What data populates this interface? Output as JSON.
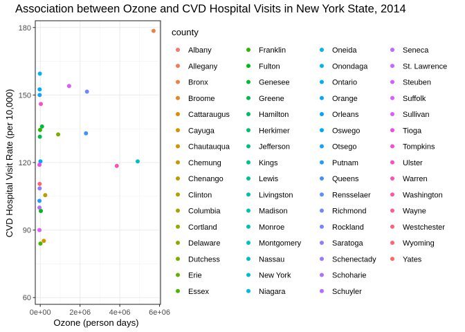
{
  "chart_data": {
    "type": "scatter",
    "title": "Association between Ozone and CVD Hospital Visits in New York State, 2014",
    "xlabel": "Ozone (person days)",
    "ylabel": "CVD Hospital Visit Rate (per 10,000)",
    "xlim": [
      -250000,
      6050000
    ],
    "ylim": [
      57,
      183
    ],
    "x_ticks": [
      0,
      2000000,
      4000000,
      6000000
    ],
    "x_tick_labels": [
      "0e+00",
      "2e+06",
      "4e+06",
      "6e+06"
    ],
    "y_ticks": [
      60,
      90,
      120,
      150,
      180
    ],
    "y_tick_labels": [
      "60",
      "90",
      "120",
      "150",
      "180"
    ],
    "grid": true,
    "legend": {
      "title": "county",
      "placement": "right",
      "columns": 4
    },
    "series": [
      {
        "name": "Albany",
        "color": "#F8766D",
        "x": null,
        "y": null
      },
      {
        "name": "Allegany",
        "color": "#F37B59",
        "x": null,
        "y": null
      },
      {
        "name": "Bronx",
        "color": "#ED8141",
        "x": 5700000,
        "y": 178.5
      },
      {
        "name": "Broome",
        "color": "#E7861B",
        "x": null,
        "y": null
      },
      {
        "name": "Cattaraugus",
        "color": "#DF8B00",
        "x": null,
        "y": null
      },
      {
        "name": "Cayuga",
        "color": "#D89000",
        "x": null,
        "y": null
      },
      {
        "name": "Chautauqua",
        "color": "#CF9400",
        "x": 180000,
        "y": 85.2
      },
      {
        "name": "Chemung",
        "color": "#C59900",
        "x": null,
        "y": null
      },
      {
        "name": "Chenango",
        "color": "#BB9D00",
        "x": null,
        "y": null
      },
      {
        "name": "Clinton",
        "color": "#B0A100",
        "x": 250000,
        "y": 105.5
      },
      {
        "name": "Columbia",
        "color": "#A3A500",
        "x": null,
        "y": null
      },
      {
        "name": "Cortland",
        "color": "#96A900",
        "x": null,
        "y": null
      },
      {
        "name": "Delaware",
        "color": "#87AC00",
        "x": null,
        "y": null
      },
      {
        "name": "Dutchess",
        "color": "#77AF00",
        "x": 900000,
        "y": 132.5
      },
      {
        "name": "Erie",
        "color": "#64B200",
        "x": null,
        "y": null
      },
      {
        "name": "Essex",
        "color": "#4DB400",
        "x": 10000,
        "y": 84.0
      },
      {
        "name": "Franklin",
        "color": "#2BB600",
        "x": -10000,
        "y": 134.5
      },
      {
        "name": "Fulton",
        "color": "#00B813",
        "x": 30000,
        "y": 98.5
      },
      {
        "name": "Genesee",
        "color": "#00BA38",
        "x": 90000,
        "y": 136.0
      },
      {
        "name": "Greene",
        "color": "#00BB4F",
        "x": -20000,
        "y": 131.5
      },
      {
        "name": "Hamilton",
        "color": "#00BC61",
        "x": null,
        "y": null
      },
      {
        "name": "Herkimer",
        "color": "#00BE70",
        "x": null,
        "y": null
      },
      {
        "name": "Jefferson",
        "color": "#00BF7D",
        "x": null,
        "y": null
      },
      {
        "name": "Kings",
        "color": "#00C08B",
        "x": null,
        "y": null
      },
      {
        "name": "Lewis",
        "color": "#00C097",
        "x": null,
        "y": null
      },
      {
        "name": "Livingston",
        "color": "#00C1A3",
        "x": null,
        "y": null
      },
      {
        "name": "Madison",
        "color": "#00C1AE",
        "x": null,
        "y": null
      },
      {
        "name": "Monroe",
        "color": "#00C0B9",
        "x": null,
        "y": null
      },
      {
        "name": "Montgomery",
        "color": "#00C0C3",
        "x": null,
        "y": null
      },
      {
        "name": "Nassau",
        "color": "#00BFC4",
        "x": 4900000,
        "y": 120.5
      },
      {
        "name": "New York",
        "color": "#00BDD4",
        "x": null,
        "y": null
      },
      {
        "name": "Niagara",
        "color": "#00BADE",
        "x": null,
        "y": null
      },
      {
        "name": "Oneida",
        "color": "#00B7E7",
        "x": null,
        "y": null
      },
      {
        "name": "Onondaga",
        "color": "#00B3F0",
        "x": -20000,
        "y": 159.5
      },
      {
        "name": "Ontario",
        "color": "#00AEF8",
        "x": null,
        "y": null
      },
      {
        "name": "Orange",
        "color": "#00A9FF",
        "x": -30000,
        "y": 152.5
      },
      {
        "name": "Orleans",
        "color": "#00A4FF",
        "x": null,
        "y": null
      },
      {
        "name": "Oswego",
        "color": "#00A9F8",
        "x": 10000,
        "y": 120.5
      },
      {
        "name": "Otsego",
        "color": "#14A2FC",
        "x": -30000,
        "y": 150.0
      },
      {
        "name": "Putnam",
        "color": "#1E9CFF",
        "x": -40000,
        "y": 103.0
      },
      {
        "name": "Queens",
        "color": "#3E92FF",
        "x": 2300000,
        "y": 133.0
      },
      {
        "name": "Rensselaer",
        "color": "#5F8CFF",
        "x": null,
        "y": null
      },
      {
        "name": "Richmond",
        "color": "#6E87FF",
        "x": 2350000,
        "y": 151.5
      },
      {
        "name": "Rockland",
        "color": "#7B82FF",
        "x": null,
        "y": null
      },
      {
        "name": "Saratoga",
        "color": "#8B7DFF",
        "x": -30000,
        "y": 108.5
      },
      {
        "name": "Schenectady",
        "color": "#9A78FF",
        "x": null,
        "y": null
      },
      {
        "name": "Schoharie",
        "color": "#A773FF",
        "x": null,
        "y": null
      },
      {
        "name": "Schuyler",
        "color": "#B26EFF",
        "x": -40000,
        "y": 100.0
      },
      {
        "name": "Seneca",
        "color": "#BD68FF",
        "x": null,
        "y": null
      },
      {
        "name": "St. Lawrence",
        "color": "#C864FF",
        "x": null,
        "y": null
      },
      {
        "name": "Steuben",
        "color": "#D15FFF",
        "x": null,
        "y": null
      },
      {
        "name": "Suffolk",
        "color": "#DA5CFF",
        "x": 1450000,
        "y": 154.0
      },
      {
        "name": "Sullivan",
        "color": "#E05BFF",
        "x": -40000,
        "y": 90.0
      },
      {
        "name": "Tioga",
        "color": "#EC4FE0",
        "x": -40000,
        "y": 119.0
      },
      {
        "name": "Tompkins",
        "color": "#F14FD1",
        "x": null,
        "y": null
      },
      {
        "name": "Ulster",
        "color": "#F651C1",
        "x": 30000,
        "y": 146.0
      },
      {
        "name": "Warren",
        "color": "#FA53B1",
        "x": 3850000,
        "y": 118.5
      },
      {
        "name": "Washington",
        "color": "#FC57A0",
        "x": null,
        "y": null
      },
      {
        "name": "Wayne",
        "color": "#FD5C8F",
        "x": null,
        "y": null
      },
      {
        "name": "Westchester",
        "color": "#FD607E",
        "x": null,
        "y": null
      },
      {
        "name": "Wyoming",
        "color": "#FC6570",
        "x": -30000,
        "y": 110.5
      },
      {
        "name": "Yates",
        "color": "#F96A64",
        "x": null,
        "y": null
      }
    ]
  }
}
